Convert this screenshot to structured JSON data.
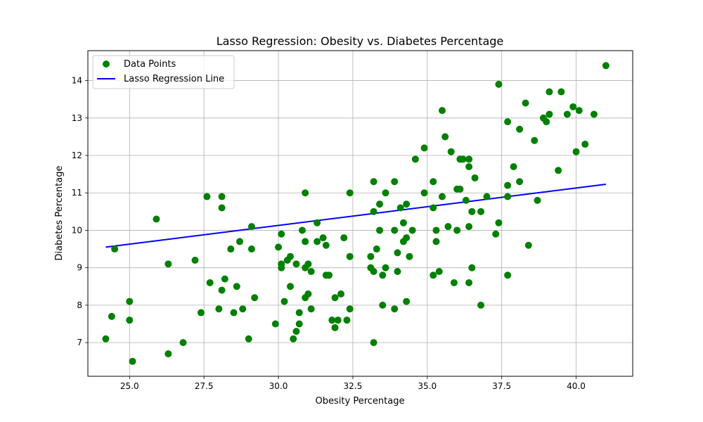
{
  "chart_data": {
    "type": "scatter",
    "title": "Lasso Regression: Obesity vs. Diabetes Percentage",
    "xlabel": "Obesity Percentage",
    "ylabel": "Diabetes Percentage",
    "xlim": [
      23.6,
      41.9
    ],
    "ylim": [
      6.1,
      14.8
    ],
    "xticks": [
      25.0,
      27.5,
      30.0,
      32.5,
      35.0,
      37.5,
      40.0
    ],
    "xtick_labels": [
      "25.0",
      "27.5",
      "30.0",
      "32.5",
      "35.0",
      "37.5",
      "40.0"
    ],
    "yticks": [
      7,
      8,
      9,
      10,
      11,
      12,
      13,
      14
    ],
    "ytick_labels": [
      "7",
      "8",
      "9",
      "10",
      "11",
      "12",
      "13",
      "14"
    ],
    "grid": true,
    "legend_position": "top-left",
    "series": [
      {
        "name": "Data Points",
        "kind": "scatter",
        "color": "#008000",
        "points": [
          [
            24.2,
            7.1
          ],
          [
            24.4,
            7.7
          ],
          [
            24.5,
            9.5
          ],
          [
            25.0,
            8.1
          ],
          [
            25.0,
            7.6
          ],
          [
            25.1,
            6.5
          ],
          [
            25.9,
            10.3
          ],
          [
            26.3,
            9.1
          ],
          [
            26.3,
            6.7
          ],
          [
            26.8,
            7.0
          ],
          [
            27.2,
            9.2
          ],
          [
            27.4,
            7.8
          ],
          [
            27.6,
            10.9
          ],
          [
            27.7,
            8.6
          ],
          [
            28.0,
            7.9
          ],
          [
            28.1,
            10.9
          ],
          [
            28.1,
            10.6
          ],
          [
            28.1,
            8.4
          ],
          [
            28.2,
            8.7
          ],
          [
            28.4,
            9.5
          ],
          [
            28.5,
            7.8
          ],
          [
            28.6,
            8.5
          ],
          [
            28.7,
            9.7
          ],
          [
            28.8,
            7.9
          ],
          [
            29.0,
            7.1
          ],
          [
            29.1,
            10.1
          ],
          [
            29.1,
            9.5
          ],
          [
            29.2,
            8.2
          ],
          [
            29.9,
            7.5
          ],
          [
            30.0,
            9.55
          ],
          [
            30.1,
            9.9
          ],
          [
            30.1,
            9.1
          ],
          [
            30.1,
            9.0
          ],
          [
            30.2,
            8.1
          ],
          [
            30.3,
            9.2
          ],
          [
            30.4,
            9.3
          ],
          [
            30.4,
            8.5
          ],
          [
            30.5,
            7.1
          ],
          [
            30.6,
            9.1
          ],
          [
            30.6,
            7.3
          ],
          [
            30.7,
            7.8
          ],
          [
            30.7,
            7.5
          ],
          [
            30.8,
            10.0
          ],
          [
            30.9,
            11.0
          ],
          [
            30.9,
            9.7
          ],
          [
            30.9,
            9.0
          ],
          [
            30.9,
            8.2
          ],
          [
            31.0,
            9.1
          ],
          [
            31.0,
            8.3
          ],
          [
            31.1,
            8.9
          ],
          [
            31.1,
            7.9
          ],
          [
            31.3,
            10.2
          ],
          [
            31.3,
            9.7
          ],
          [
            31.5,
            9.8
          ],
          [
            31.6,
            9.6
          ],
          [
            31.6,
            8.8
          ],
          [
            31.7,
            8.8
          ],
          [
            31.8,
            7.6
          ],
          [
            31.9,
            8.2
          ],
          [
            31.9,
            7.4
          ],
          [
            32.0,
            7.6
          ],
          [
            32.1,
            8.3
          ],
          [
            32.2,
            9.8
          ],
          [
            32.3,
            7.6
          ],
          [
            32.4,
            11.0
          ],
          [
            32.4,
            9.3
          ],
          [
            32.4,
            7.9
          ],
          [
            33.1,
            9.3
          ],
          [
            33.1,
            9.0
          ],
          [
            33.2,
            11.3
          ],
          [
            33.2,
            10.5
          ],
          [
            33.2,
            8.9
          ],
          [
            33.2,
            7.0
          ],
          [
            33.3,
            9.5
          ],
          [
            33.4,
            10.7
          ],
          [
            33.4,
            10.0
          ],
          [
            33.5,
            8.8
          ],
          [
            33.5,
            8.0
          ],
          [
            33.6,
            11.0
          ],
          [
            33.6,
            9.0
          ],
          [
            33.9,
            11.3
          ],
          [
            33.9,
            10.0
          ],
          [
            33.9,
            7.9
          ],
          [
            34.0,
            9.4
          ],
          [
            34.0,
            8.9
          ],
          [
            34.1,
            10.6
          ],
          [
            34.2,
            10.2
          ],
          [
            34.2,
            9.7
          ],
          [
            34.3,
            10.7
          ],
          [
            34.3,
            9.8
          ],
          [
            34.3,
            8.1
          ],
          [
            34.4,
            9.3
          ],
          [
            34.5,
            10.0
          ],
          [
            34.6,
            11.9
          ],
          [
            34.9,
            12.2
          ],
          [
            34.9,
            11.0
          ],
          [
            35.2,
            11.3
          ],
          [
            35.2,
            10.6
          ],
          [
            35.2,
            8.8
          ],
          [
            35.3,
            10.0
          ],
          [
            35.3,
            9.7
          ],
          [
            35.4,
            8.9
          ],
          [
            35.5,
            13.2
          ],
          [
            35.5,
            10.9
          ],
          [
            35.6,
            12.5
          ],
          [
            35.7,
            10.1
          ],
          [
            35.8,
            12.1
          ],
          [
            35.9,
            8.6
          ],
          [
            36.0,
            11.1
          ],
          [
            36.0,
            10.0
          ],
          [
            36.1,
            11.9
          ],
          [
            36.1,
            11.1
          ],
          [
            36.2,
            11.9
          ],
          [
            36.3,
            10.8
          ],
          [
            36.4,
            11.9
          ],
          [
            36.4,
            11.7
          ],
          [
            36.4,
            10.1
          ],
          [
            36.4,
            8.6
          ],
          [
            36.5,
            10.5
          ],
          [
            36.5,
            9.0
          ],
          [
            36.6,
            11.4
          ],
          [
            36.8,
            10.5
          ],
          [
            36.8,
            8.0
          ],
          [
            37.0,
            10.9
          ],
          [
            37.3,
            9.9
          ],
          [
            37.4,
            13.9
          ],
          [
            37.4,
            10.2
          ],
          [
            37.7,
            12.9
          ],
          [
            37.7,
            11.2
          ],
          [
            37.7,
            10.9
          ],
          [
            37.7,
            8.8
          ],
          [
            37.9,
            11.7
          ],
          [
            38.1,
            12.7
          ],
          [
            38.1,
            11.3
          ],
          [
            38.3,
            13.4
          ],
          [
            38.4,
            9.6
          ],
          [
            38.6,
            12.4
          ],
          [
            38.7,
            10.8
          ],
          [
            38.9,
            13.0
          ],
          [
            39.0,
            12.9
          ],
          [
            39.1,
            13.7
          ],
          [
            39.1,
            13.1
          ],
          [
            39.4,
            11.6
          ],
          [
            39.5,
            13.7
          ],
          [
            39.7,
            13.1
          ],
          [
            39.9,
            13.3
          ],
          [
            40.0,
            12.1
          ],
          [
            40.1,
            13.2
          ],
          [
            40.3,
            12.3
          ],
          [
            40.6,
            13.1
          ],
          [
            41.0,
            14.4
          ]
        ]
      },
      {
        "name": "Lasso Regression Line",
        "kind": "line",
        "color": "#0000ff",
        "points": [
          [
            24.2,
            9.55
          ],
          [
            41.0,
            11.23
          ]
        ]
      }
    ]
  }
}
